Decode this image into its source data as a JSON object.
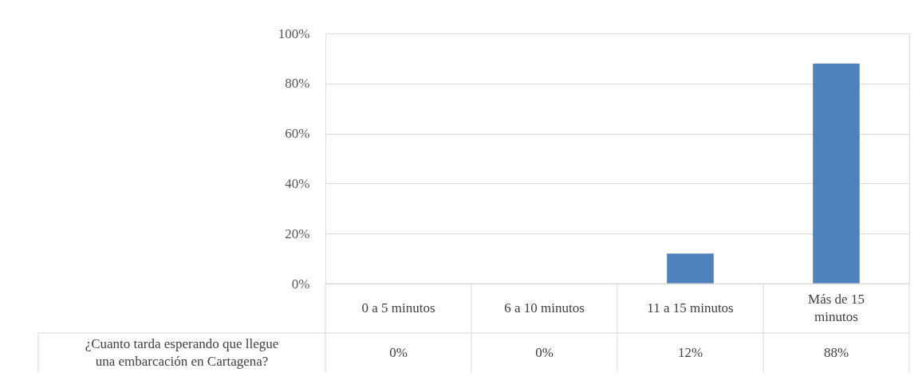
{
  "chart_data": {
    "type": "bar",
    "categories": [
      "0 a 5 minutos",
      "6 a 10 minutos",
      "11 a 15 minutos",
      "Más de 15 minutos"
    ],
    "series": [
      {
        "name": "¿Cuanto tarda esperando que llegue una embarcación en Cartagena?",
        "color": "#4f81bd",
        "values": [
          0,
          0,
          12,
          88
        ],
        "value_labels": [
          "0%",
          "0%",
          "12%",
          "88%"
        ]
      }
    ],
    "ylim": [
      0,
      100
    ],
    "yticks": [
      {
        "value": 0,
        "label": "0%"
      },
      {
        "value": 20,
        "label": "20%"
      },
      {
        "value": 40,
        "label": "40%"
      },
      {
        "value": 60,
        "label": "60%"
      },
      {
        "value": 80,
        "label": "80%"
      },
      {
        "value": 100,
        "label": "100%"
      }
    ],
    "grid": "y"
  }
}
